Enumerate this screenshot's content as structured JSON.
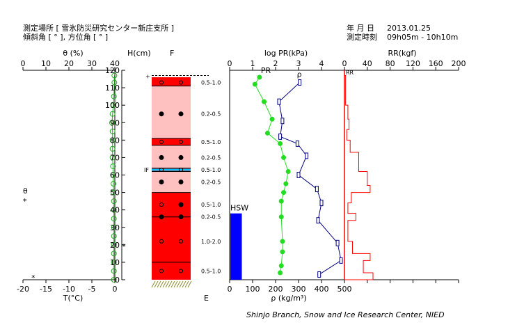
{
  "header": {
    "location_label": "測定場所 [ 雪氷防災研究センター新庄支所 ]",
    "angle_label": "傾斜角 [ ° ], 方位角 [ ° ]",
    "date_label": "年 月 日",
    "date_value": "2013.01.25",
    "time_label": "測定時刻",
    "time_value": "09h05m - 10h10m"
  },
  "credit": "Shinjo Branch, Snow and Ice Research Center, NIED",
  "chart_data": [
    {
      "id": "temperature-moisture",
      "type": "line",
      "top_axis": {
        "label": "θ (%)",
        "ticks": [
          "0",
          "10",
          "20",
          "30",
          "40"
        ],
        "range": [
          0,
          40
        ]
      },
      "bottom_axis": {
        "label": "T(°C)",
        "ticks": [
          "-20",
          "-15",
          "-10",
          "-5",
          "0"
        ],
        "range": [
          -20,
          0
        ]
      },
      "series": [
        {
          "key": "temperature",
          "color": "#22aa22",
          "points": [
            [
              -0.1,
              117
            ],
            [
              -0.1,
              113
            ],
            [
              -0.2,
              105
            ],
            [
              -0.3,
              100
            ],
            [
              -0.5,
              95
            ],
            [
              -0.6,
              90
            ],
            [
              -0.5,
              85
            ],
            [
              -0.5,
              80
            ],
            [
              -0.5,
              75
            ],
            [
              -0.5,
              70
            ],
            [
              -0.4,
              65
            ],
            [
              -0.4,
              60
            ],
            [
              -0.3,
              55
            ],
            [
              -0.3,
              50
            ],
            [
              -0.2,
              45
            ],
            [
              -0.2,
              40
            ],
            [
              -0.2,
              35
            ],
            [
              -0.2,
              30
            ],
            [
              -0.2,
              25
            ],
            [
              -0.2,
              20
            ],
            [
              -0.2,
              15
            ],
            [
              -0.2,
              10
            ],
            [
              -0.2,
              5
            ],
            [
              -0.2,
              0
            ]
          ]
        }
      ],
      "legend_markers": [
        {
          "symbol": "θ",
          "y": 51
        },
        {
          "symbol": "*",
          "y": 45
        }
      ],
      "moisture_points": [
        [
          2,
          20
        ],
        [
          -17.7,
          2
        ]
      ]
    },
    {
      "id": "stratigraphy",
      "type": "table",
      "axis_label": "H(cm)",
      "column_label": "F",
      "bottom_label": "E",
      "axis_ticks": [
        "0",
        "10",
        "20",
        "30",
        "40",
        "50",
        "60",
        "70",
        "80",
        "90",
        "100",
        "110",
        "120"
      ],
      "range": [
        0,
        120
      ],
      "snow_surface": 117,
      "layers": [
        {
          "bottom": 111,
          "top": 116,
          "color": "#ff0000",
          "grain": "open",
          "grain_y": 113,
          "size": "0.5-1.0",
          "size_y": 113
        },
        {
          "bottom": 81,
          "top": 111,
          "color": "#ffc0c0",
          "grain": "filled",
          "grain_y": 95,
          "size": "0.2-0.5",
          "size_y": 95
        },
        {
          "bottom": 77,
          "top": 81,
          "color": "#ff0000",
          "grain": "open",
          "grain_y": 79,
          "size": "0.5-1.0",
          "size_y": 79
        },
        {
          "bottom": 64,
          "top": 77,
          "color": "#ffc0c0",
          "grain": "filled",
          "grain_y": 70,
          "size": "0.2-0.5",
          "size_y": 70
        },
        {
          "bottom": 62,
          "top": 64,
          "color": "#ff0000",
          "grain": "open",
          "grain_y": 63,
          "size": "0.5-1.0",
          "size_y": 63
        },
        {
          "bottom": 50,
          "top": 62,
          "color": "#ffc0c0",
          "grain": "filled",
          "grain_y": 56,
          "size": "0.2-0.5",
          "size_y": 56
        },
        {
          "bottom": 36,
          "top": 50,
          "color": "#ff0000",
          "grain": "mixed",
          "grain_y": 43,
          "size": "0.5-1.0",
          "size_y": 43
        },
        {
          "bottom": 0,
          "top": 36,
          "color": "#ff0000",
          "grain": "open",
          "grain_y": 22,
          "size": "1.0-2.0",
          "size_y": 22
        }
      ],
      "extra_grains": [
        {
          "y": 36,
          "grain": "filled",
          "size": "0.2-0.5"
        },
        {
          "y": 5,
          "grain": "open",
          "size": "0.5-1.0"
        }
      ],
      "layer_lines": [
        111,
        81,
        77,
        64,
        62,
        50,
        36,
        10
      ],
      "ice_layer": {
        "y": 63,
        "label": "IF",
        "color": "#00c0ff"
      }
    },
    {
      "id": "hardness-density",
      "type": "line",
      "top_axis": {
        "label": "log PR(kPa)",
        "ticks": [
          "0",
          "1",
          "2",
          "3",
          "4"
        ],
        "range": [
          0,
          5
        ]
      },
      "bottom_axis": {
        "label": "ρ (kg/m³)",
        "ticks": [
          "0",
          "100",
          "200",
          "300",
          "400",
          "500"
        ],
        "range": [
          0,
          500
        ]
      },
      "series": [
        {
          "key": "pr",
          "name": "PR",
          "color": "#22dd22",
          "unit_axis": "top",
          "points": [
            [
              1.3,
              116
            ],
            [
              1.1,
              112
            ],
            [
              1.5,
              102
            ],
            [
              1.85,
              92
            ],
            [
              1.65,
              84
            ],
            [
              2.2,
              78
            ],
            [
              2.35,
              70
            ],
            [
              2.55,
              62
            ],
            [
              2.45,
              55
            ],
            [
              2.35,
              50
            ],
            [
              2.25,
              45
            ],
            [
              2.25,
              36
            ],
            [
              2.3,
              22
            ],
            [
              2.3,
              16
            ],
            [
              2.25,
              8
            ],
            [
              2.2,
              4
            ]
          ]
        },
        {
          "key": "density",
          "name": "ρ",
          "color": "#000080",
          "unit_axis": "bottom",
          "points": [
            [
              305,
              113
            ],
            [
              215,
              102
            ],
            [
              230,
              91
            ],
            [
              220,
              82
            ],
            [
              295,
              78
            ],
            [
              335,
              71
            ],
            [
              300,
              60
            ],
            [
              380,
              52
            ],
            [
              400,
              44
            ],
            [
              385,
              34
            ],
            [
              470,
              21
            ],
            [
              485,
              11
            ],
            [
              390,
              3
            ]
          ]
        }
      ],
      "hsw": {
        "label": "HSW",
        "value": 38,
        "color": "#0000ff",
        "width_range": [
          0,
          50
        ]
      }
    },
    {
      "id": "ram-resistance",
      "type": "bar",
      "axis_label": "RR(kgf)",
      "ticks": [
        "0",
        "40",
        "80",
        "120",
        "160",
        "200"
      ],
      "range": [
        0,
        200
      ],
      "series_label": "RR",
      "color": "#ff0000",
      "profile": [
        [
          0,
          117
        ],
        [
          2,
          117
        ],
        [
          2,
          100
        ],
        [
          6,
          100
        ],
        [
          6,
          92
        ],
        [
          8,
          92
        ],
        [
          8,
          86
        ],
        [
          4,
          86
        ],
        [
          4,
          80
        ],
        [
          10,
          80
        ],
        [
          10,
          73
        ],
        [
          25,
          73
        ],
        [
          25,
          62
        ],
        [
          40,
          62
        ],
        [
          40,
          54
        ],
        [
          45,
          54
        ],
        [
          45,
          50
        ],
        [
          12,
          50
        ],
        [
          12,
          44
        ],
        [
          6,
          44
        ],
        [
          6,
          38
        ],
        [
          20,
          38
        ],
        [
          20,
          34
        ],
        [
          6,
          34
        ],
        [
          6,
          22
        ],
        [
          14,
          22
        ],
        [
          14,
          15
        ],
        [
          45,
          15
        ],
        [
          45,
          11
        ],
        [
          33,
          11
        ],
        [
          33,
          4
        ],
        [
          50,
          4
        ],
        [
          50,
          0
        ],
        [
          0,
          0
        ]
      ]
    }
  ]
}
